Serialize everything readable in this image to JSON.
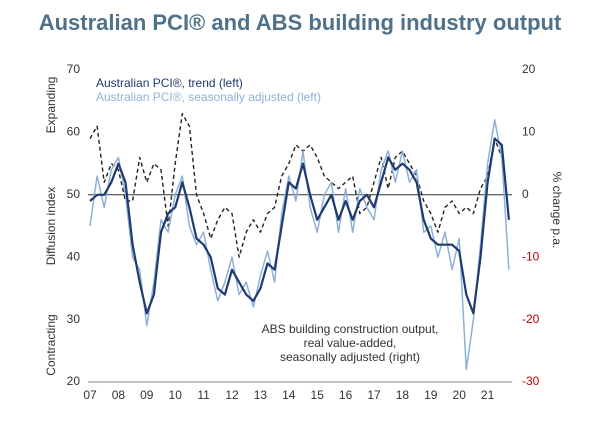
{
  "chart_data": {
    "type": "line",
    "title": "Australian PCI® and ABS building industry output",
    "title_color": "#4f7189",
    "ylabel": "Diffusion index",
    "ylabel_top": "Expanding",
    "ylabel_bottom": "Contracting",
    "y2label": "% change p.a.",
    "annotation": [
      "ABS building construction output,",
      "real value-added,",
      "seasonally adjusted (right)"
    ],
    "xlim": [
      2007,
      2022
    ],
    "xticks": [
      {
        "value": 2007,
        "label": "07"
      },
      {
        "value": 2008,
        "label": "08"
      },
      {
        "value": 2009,
        "label": "09"
      },
      {
        "value": 2010,
        "label": "10"
      },
      {
        "value": 2011,
        "label": "11"
      },
      {
        "value": 2012,
        "label": "12"
      },
      {
        "value": 2013,
        "label": "13"
      },
      {
        "value": 2014,
        "label": "14"
      },
      {
        "value": 2015,
        "label": "15"
      },
      {
        "value": 2016,
        "label": "16"
      },
      {
        "value": 2017,
        "label": "17"
      },
      {
        "value": 2018,
        "label": "18"
      },
      {
        "value": 2019,
        "label": "19"
      },
      {
        "value": 2020,
        "label": "20"
      },
      {
        "value": 2021,
        "label": "21"
      }
    ],
    "ylim": [
      20,
      70
    ],
    "yticks": [
      20,
      30,
      40,
      50,
      60,
      70
    ],
    "y2lim": [
      -30,
      20
    ],
    "y2ticks": [
      -30,
      -20,
      -10,
      0,
      10,
      20
    ],
    "y2tick_colors": [
      "#c00000",
      "#c00000",
      "#c00000",
      "#333333",
      "#333333",
      "#333333"
    ],
    "x": [
      2007,
      2007.25,
      2007.5,
      2007.75,
      2008,
      2008.25,
      2008.5,
      2008.75,
      2009,
      2009.25,
      2009.5,
      2009.75,
      2010,
      2010.25,
      2010.5,
      2010.75,
      2011,
      2011.25,
      2011.5,
      2011.75,
      2012,
      2012.25,
      2012.5,
      2012.75,
      2013,
      2013.25,
      2013.5,
      2013.75,
      2014,
      2014.25,
      2014.5,
      2014.75,
      2015,
      2015.25,
      2015.5,
      2015.75,
      2016,
      2016.25,
      2016.5,
      2016.75,
      2017,
      2017.25,
      2017.5,
      2017.75,
      2018,
      2018.25,
      2018.5,
      2018.75,
      2019,
      2019.25,
      2019.5,
      2019.75,
      2020,
      2020.25,
      2020.5,
      2020.75,
      2021,
      2021.25,
      2021.5,
      2021.75
    ],
    "series": [
      {
        "name": "Australian PCI®, seasonally adjusted (left)",
        "color": "#8fb0d8",
        "dash": false,
        "width": 1.5,
        "values": [
          45,
          53,
          48,
          54,
          56,
          50,
          40,
          38,
          29,
          36,
          46,
          44,
          50,
          53,
          45,
          42,
          44,
          38,
          33,
          36,
          40,
          34,
          36,
          32,
          37,
          41,
          36,
          47,
          53,
          49,
          57,
          48,
          44,
          50,
          52,
          44,
          51,
          44,
          51,
          48,
          46,
          54,
          57,
          52,
          57,
          52,
          54,
          44,
          45,
          40,
          44,
          38,
          43,
          22,
          30,
          42,
          55,
          62,
          56,
          38
        ]
      },
      {
        "name": "Australian PCI®, trend (left)",
        "color": "#1f3a6e",
        "dash": false,
        "width": 2.2,
        "values": [
          49,
          50,
          50,
          52,
          55,
          52,
          42,
          36,
          31,
          34,
          44,
          47,
          48,
          52,
          48,
          43,
          42,
          40,
          35,
          34,
          38,
          36,
          34,
          33,
          35,
          39,
          38,
          45,
          52,
          51,
          55,
          50,
          46,
          48,
          50,
          46,
          49,
          46,
          49,
          50,
          48,
          52,
          56,
          54,
          55,
          54,
          52,
          46,
          43,
          42,
          42,
          42,
          41,
          34,
          31,
          40,
          52,
          59,
          58,
          46
        ]
      },
      {
        "name": "ABS building construction output, real value-added, seasonally adjusted (right)",
        "color": "#222222",
        "dash": true,
        "width": 1.4,
        "axis": "y2",
        "values": [
          9,
          11,
          2,
          5,
          4,
          -1,
          -1,
          6,
          2,
          5,
          4,
          -5,
          5,
          13,
          11,
          0,
          -3,
          -7,
          -4,
          -2,
          -3,
          -10,
          -6,
          -4,
          -6,
          -3,
          -2,
          3,
          5,
          8,
          7,
          8,
          6,
          3,
          2,
          1,
          2,
          3,
          -3,
          -2,
          2,
          6,
          1,
          6,
          7,
          5,
          3,
          -1,
          -3,
          -6,
          -2,
          -1,
          -3,
          -2,
          -3,
          1,
          3,
          9,
          6,
          null
        ]
      }
    ],
    "legend": [
      1,
      0
    ]
  }
}
